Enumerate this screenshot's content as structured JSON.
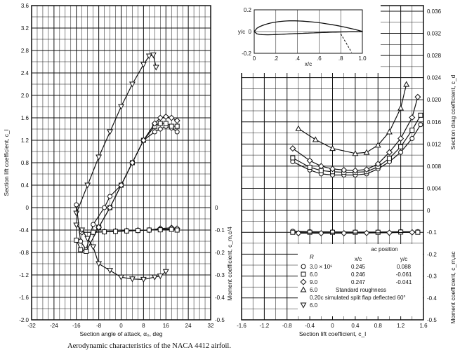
{
  "caption": "Aerodynamic characteristics of the NACA 4412 airfoil.",
  "chart_data": [
    {
      "type": "line",
      "xlabel": "Section angle of attack, α₀, deg",
      "ylabel": "Section lift coefficient, c_l",
      "ylabel_right": "Moment coefficient, c_m,c/4",
      "xlim": [
        -32,
        32
      ],
      "ylim": [
        -2.0,
        3.6
      ],
      "ylim_right": [
        -0.5,
        0.0
      ],
      "grid": true,
      "x_ticks": [
        "-32",
        "-24",
        "-16",
        "-8",
        "0",
        "8",
        "16",
        "24",
        "32"
      ],
      "y_ticks": [
        "-2.0",
        "-1.6",
        "-1.2",
        "-0.8",
        "-0.4",
        "0",
        "0.4",
        "0.8",
        "1.2",
        "1.6",
        "2.0",
        "2.4",
        "2.8",
        "3.2",
        "3.6"
      ],
      "y_right_ticks": [
        "-0.5",
        "-0.4",
        "-0.3",
        "-0.2",
        "-0.1",
        "0"
      ],
      "lift_series": [
        {
          "marker": "triangle-down",
          "axis": "left",
          "points": [
            [
              -16,
              -0.1
            ],
            [
              -12,
              0.4
            ],
            [
              -8,
              0.9
            ],
            [
              -4,
              1.35
            ],
            [
              0,
              1.8
            ],
            [
              4,
              2.2
            ],
            [
              8,
              2.55
            ],
            [
              10,
              2.7
            ],
            [
              11.5,
              2.72
            ],
            [
              12.5,
              2.5
            ]
          ]
        },
        {
          "marker": "circle",
          "axis": "left",
          "points": [
            [
              -16,
              0.05
            ],
            [
              -14.5,
              -0.6
            ],
            [
              -12.5,
              -0.75
            ],
            [
              -10,
              -0.3
            ],
            [
              -6,
              0.0
            ],
            [
              -4,
              0.2
            ],
            [
              0,
              0.4
            ],
            [
              4,
              0.8
            ],
            [
              8,
              1.2
            ],
            [
              12,
              1.35
            ],
            [
              14,
              1.4
            ],
            [
              16,
              1.45
            ],
            [
              18,
              1.42
            ],
            [
              20,
              1.35
            ]
          ]
        },
        {
          "marker": "square",
          "axis": "left",
          "points": [
            [
              -16,
              -0.58
            ],
            [
              -14.5,
              -0.75
            ],
            [
              -12.5,
              -0.78
            ],
            [
              -8,
              -0.35
            ],
            [
              -4,
              0.0
            ],
            [
              0,
              0.4
            ],
            [
              4,
              0.8
            ],
            [
              8,
              1.2
            ],
            [
              12,
              1.45
            ],
            [
              14,
              1.5
            ],
            [
              16,
              1.5
            ],
            [
              18,
              1.45
            ],
            [
              20,
              1.45
            ]
          ]
        },
        {
          "marker": "diamond",
          "axis": "left",
          "points": [
            [
              -8,
              -0.35
            ],
            [
              -4,
              0.0
            ],
            [
              0,
              0.4
            ],
            [
              4,
              0.8
            ],
            [
              8,
              1.2
            ],
            [
              12,
              1.5
            ],
            [
              14,
              1.6
            ],
            [
              16,
              1.62
            ],
            [
              18,
              1.6
            ],
            [
              20,
              1.55
            ]
          ]
        }
      ],
      "moment_series": [
        {
          "marker": "diamond",
          "axis": "right",
          "points": [
            [
              -14,
              -0.11
            ],
            [
              -10,
              -0.11
            ],
            [
              -6,
              -0.107
            ],
            [
              -2,
              -0.105
            ],
            [
              2,
              -0.103
            ],
            [
              6,
              -0.101
            ],
            [
              10,
              -0.1
            ],
            [
              14,
              -0.093
            ],
            [
              18,
              -0.09
            ],
            [
              20,
              -0.093
            ]
          ]
        },
        {
          "marker": "circle",
          "axis": "right",
          "points": [
            [
              -10,
              -0.11
            ],
            [
              -6,
              -0.108
            ],
            [
              -2,
              -0.106
            ],
            [
              2,
              -0.104
            ],
            [
              6,
              -0.102
            ],
            [
              10,
              -0.1
            ],
            [
              14,
              -0.097
            ],
            [
              18,
              -0.095
            ],
            [
              20,
              -0.1
            ]
          ]
        },
        {
          "marker": "square",
          "axis": "right",
          "points": [
            [
              -10,
              -0.11
            ],
            [
              -6,
              -0.108
            ],
            [
              -2,
              -0.106
            ],
            [
              2,
              -0.104
            ],
            [
              6,
              -0.102
            ],
            [
              10,
              -0.1
            ],
            [
              14,
              -0.099
            ],
            [
              18,
              -0.097
            ],
            [
              20,
              -0.1
            ]
          ]
        },
        {
          "marker": "triangle-down",
          "axis": "right",
          "points": [
            [
              -16,
              -0.078
            ],
            [
              -14,
              -0.1
            ],
            [
              -12,
              -0.138
            ],
            [
              -10,
              -0.175
            ],
            [
              -8,
              -0.25
            ],
            [
              -4,
              -0.28
            ],
            [
              0,
              -0.31
            ],
            [
              4,
              -0.318
            ],
            [
              8,
              -0.32
            ],
            [
              12,
              -0.31
            ],
            [
              14,
              -0.305
            ],
            [
              16,
              -0.285
            ]
          ]
        }
      ]
    },
    {
      "type": "line",
      "xlabel": "Section lift coefficient, c_l",
      "ylabel_right_top": "Section drag coefficient, c_d",
      "ylabel_right_bottom": "Moment coefficient, c_m,ac",
      "xlim": [
        -1.6,
        1.6
      ],
      "ylim_top": [
        0,
        0.036
      ],
      "ylim_bottom": [
        -0.5,
        0.0
      ],
      "grid": true,
      "x_ticks": [
        "-1.6",
        "-1.2",
        "-0.8",
        "-0.4",
        "0",
        "0.4",
        "0.8",
        "1.2",
        "1.6"
      ],
      "cd_ticks": [
        "0",
        "0.004",
        "0.008",
        "0.012",
        "0.016",
        "0.020",
        "0.024",
        "0.028",
        "0.032",
        "0.036"
      ],
      "cm_ticks": [
        "-0.1",
        "-0.2",
        "-0.3",
        "-0.4",
        "-0.5"
      ],
      "drag_series": [
        {
          "marker": "circle",
          "points": [
            [
              -0.7,
              0.0088
            ],
            [
              -0.4,
              0.0073
            ],
            [
              -0.2,
              0.0066
            ],
            [
              0,
              0.0064
            ],
            [
              0.2,
              0.0064
            ],
            [
              0.4,
              0.0064
            ],
            [
              0.6,
              0.0066
            ],
            [
              0.8,
              0.0075
            ],
            [
              1.0,
              0.0088
            ],
            [
              1.2,
              0.0105
            ],
            [
              1.4,
              0.013
            ],
            [
              1.55,
              0.0155
            ]
          ]
        },
        {
          "marker": "square",
          "points": [
            [
              -0.7,
              0.0095
            ],
            [
              -0.4,
              0.0078
            ],
            [
              -0.2,
              0.0072
            ],
            [
              0,
              0.007
            ],
            [
              0.2,
              0.0069
            ],
            [
              0.4,
              0.0069
            ],
            [
              0.6,
              0.007
            ],
            [
              0.8,
              0.0079
            ],
            [
              1.0,
              0.0094
            ],
            [
              1.2,
              0.0115
            ],
            [
              1.4,
              0.0145
            ],
            [
              1.55,
              0.0172
            ]
          ]
        },
        {
          "marker": "diamond",
          "points": [
            [
              -0.7,
              0.0112
            ],
            [
              -0.4,
              0.009
            ],
            [
              -0.2,
              0.008
            ],
            [
              0,
              0.0075
            ],
            [
              0.2,
              0.0073
            ],
            [
              0.4,
              0.0072
            ],
            [
              0.6,
              0.0074
            ],
            [
              0.8,
              0.0084
            ],
            [
              1.0,
              0.0105
            ],
            [
              1.2,
              0.013
            ],
            [
              1.4,
              0.0168
            ],
            [
              1.5,
              0.0205
            ]
          ]
        },
        {
          "marker": "triangle",
          "points": [
            [
              -0.6,
              0.0148
            ],
            [
              -0.3,
              0.0128
            ],
            [
              0,
              0.0112
            ],
            [
              0.4,
              0.0103
            ],
            [
              0.6,
              0.0105
            ],
            [
              0.8,
              0.0118
            ],
            [
              1.0,
              0.0142
            ],
            [
              1.2,
              0.0185
            ],
            [
              1.3,
              0.0228
            ]
          ]
        }
      ],
      "moment_series": [
        {
          "marker": "circle",
          "points": [
            [
              -0.7,
              -0.095
            ],
            [
              -0.4,
              -0.097
            ],
            [
              0,
              -0.098
            ],
            [
              0.4,
              -0.099
            ],
            [
              0.8,
              -0.099
            ],
            [
              1.2,
              -0.097
            ],
            [
              1.5,
              -0.097
            ]
          ]
        },
        {
          "marker": "square",
          "points": [
            [
              -0.7,
              -0.1
            ],
            [
              -0.4,
              -0.1
            ],
            [
              0,
              -0.1
            ],
            [
              0.4,
              -0.1
            ],
            [
              0.8,
              -0.1
            ],
            [
              1.2,
              -0.099
            ],
            [
              1.5,
              -0.1
            ]
          ]
        },
        {
          "marker": "diamond",
          "points": [
            [
              -0.6,
              -0.104
            ],
            [
              -0.2,
              -0.104
            ],
            [
              0.2,
              -0.104
            ],
            [
              0.6,
              -0.103
            ],
            [
              1.0,
              -0.102
            ],
            [
              1.4,
              -0.1
            ]
          ]
        }
      ],
      "legend": {
        "ac_title": "ac position",
        "header_r": "R",
        "header_x": "x/c",
        "header_y": "y/c",
        "rows": [
          {
            "marker": "circle",
            "r": "3.0 × 10⁶",
            "x": "0.245",
            "y": "0.088"
          },
          {
            "marker": "square",
            "r": "6.0",
            "x": "0.246",
            "y": "-0.061"
          },
          {
            "marker": "diamond",
            "r": "9.0",
            "x": "0.247",
            "y": "-0.041"
          },
          {
            "marker": "triangle",
            "r": "6.0",
            "note": "Standard roughness"
          },
          {
            "marker": "",
            "r": "",
            "note": "0.20c simulated split flap deflected 60°"
          },
          {
            "marker": "triangle-down",
            "r": "6.0"
          }
        ]
      },
      "inset": {
        "ylabel": "y/c",
        "xlabel": "x/c",
        "x_ticks": [
          "0",
          ".2",
          ".4",
          ".6",
          ".8",
          "1.0"
        ],
        "y_ticks": [
          "0.2",
          "0",
          "-0.2"
        ]
      }
    }
  ]
}
